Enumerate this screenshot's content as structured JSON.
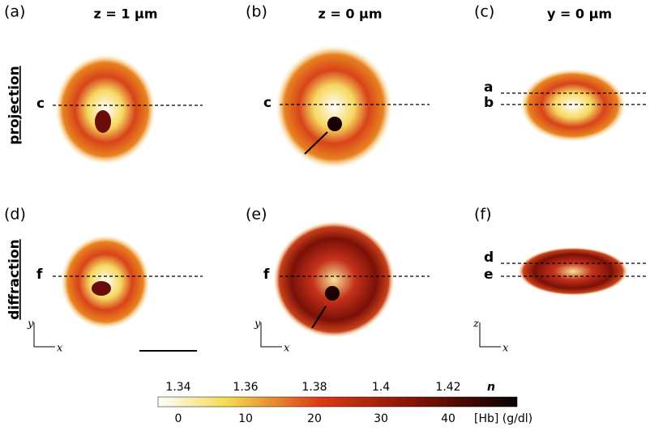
{
  "panels": [
    {
      "label": "(a)",
      "heading": "z = 1 μm",
      "lines": [
        "c"
      ]
    },
    {
      "label": "(b)",
      "heading": "z = 0 μm",
      "lines": [
        "c"
      ]
    },
    {
      "label": "(c)",
      "heading": "y = 0 μm",
      "lines": [
        "a",
        "b"
      ]
    },
    {
      "label": "(d)",
      "lines": [
        "f"
      ],
      "axes": [
        "y",
        "x"
      ]
    },
    {
      "label": "(e)",
      "lines": [
        "f"
      ],
      "axes": [
        "y",
        "x"
      ]
    },
    {
      "label": "(f)",
      "lines": [
        "d",
        "e"
      ],
      "axes": [
        "z",
        "x"
      ]
    }
  ],
  "row_labels": [
    "projection",
    "diffraction"
  ],
  "colorbar": {
    "n_labels": [
      "1.34",
      "1.36",
      "1.38",
      "1.4",
      "1.42"
    ],
    "n_title": "n",
    "hb_labels": [
      "0",
      "10",
      "20",
      "30",
      "40"
    ],
    "hb_title": "[Hb] (g/dl)"
  }
}
